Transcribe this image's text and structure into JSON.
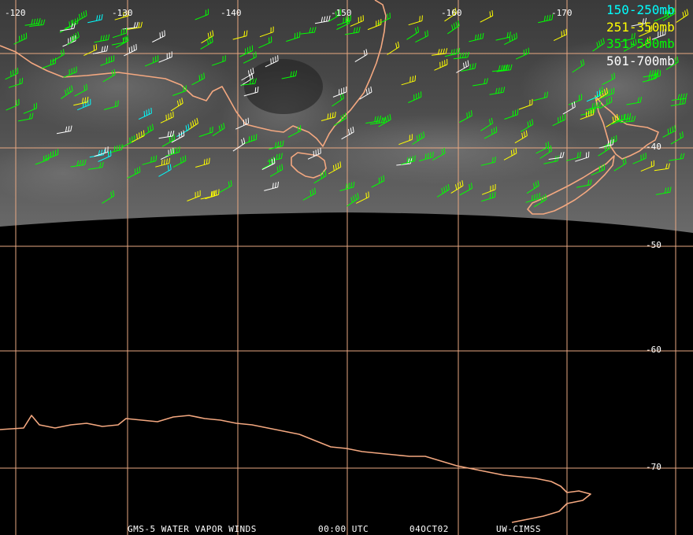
{
  "map": {
    "grid_color": "#e8a882",
    "coast_color": "#f4a880",
    "longitude_labels": [
      "-120",
      "-130",
      "-140",
      "-150",
      "-160",
      "-170"
    ],
    "latitude_labels": [
      "-40",
      "-50",
      "-60",
      "-70"
    ]
  },
  "legend": [
    {
      "label": "150-250mb",
      "color": "#00ffff"
    },
    {
      "label": "251-350mb",
      "color": "#ffff00"
    },
    {
      "label": "351-500mb",
      "color": "#00ff00"
    },
    {
      "label": "501-700mb",
      "color": "#ffffff"
    }
  ],
  "footer": {
    "satellite": "GMS-5 WATER VAPOR WINDS",
    "time": "00:00 UTC",
    "date": "04OCT02",
    "source": "UW-CIMSS"
  }
}
